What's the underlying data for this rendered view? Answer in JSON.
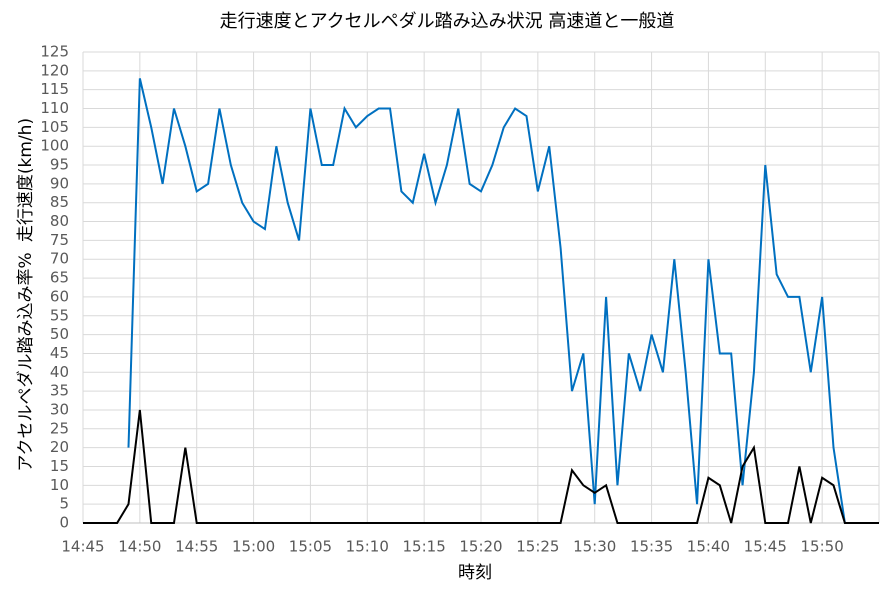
{
  "chart_data": {
    "type": "line",
    "title": "走行速度とアクセルペダル踏み込み状況 高速道と一般道",
    "x_label": "時刻",
    "y_label": [
      "アクセルペダル踏み込み率%",
      "走行速度(km/h)"
    ],
    "x": [
      "14:45",
      "14:46",
      "14:47",
      "14:48",
      "14:49",
      "14:50",
      "14:51",
      "14:52",
      "14:53",
      "14:54",
      "14:55",
      "14:56",
      "14:57",
      "14:58",
      "14:59",
      "15:00",
      "15:01",
      "15:02",
      "15:03",
      "15:04",
      "15:05",
      "15:06",
      "15:07",
      "15:08",
      "15:09",
      "15:10",
      "15:11",
      "15:12",
      "15:13",
      "15:14",
      "15:15",
      "15:16",
      "15:17",
      "15:18",
      "15:19",
      "15:20",
      "15:21",
      "15:22",
      "15:23",
      "15:24",
      "15:25",
      "15:26",
      "15:27",
      "15:28",
      "15:29",
      "15:30",
      "15:31",
      "15:32",
      "15:33",
      "15:34",
      "15:35",
      "15:36",
      "15:37",
      "15:38",
      "15:39",
      "15:40",
      "15:41",
      "15:42",
      "15:43",
      "15:44",
      "15:45",
      "15:46",
      "15:47",
      "15:48",
      "15:49",
      "15:50",
      "15:51",
      "15:52",
      "15:53",
      "15:54",
      "15:55"
    ],
    "series": [
      {
        "name": "走行速度",
        "color": "#0070c0",
        "values": [
          null,
          null,
          null,
          null,
          20,
          118,
          105,
          90,
          110,
          100,
          88,
          90,
          110,
          95,
          85,
          80,
          78,
          100,
          85,
          75,
          110,
          95,
          95,
          110,
          105,
          108,
          110,
          110,
          88,
          85,
          98,
          85,
          95,
          110,
          90,
          88,
          95,
          105,
          110,
          108,
          88,
          100,
          73,
          35,
          45,
          5,
          60,
          10,
          45,
          35,
          50,
          40,
          70,
          40,
          5,
          70,
          45,
          45,
          10,
          40,
          95,
          66,
          60,
          60,
          40,
          60,
          20,
          0,
          null,
          null,
          null
        ]
      },
      {
        "name": "アクセルペダル踏み込み率",
        "color": "#000000",
        "values": [
          0,
          0,
          0,
          0,
          5,
          30,
          0,
          0,
          0,
          20,
          0,
          0,
          0,
          0,
          0,
          0,
          0,
          0,
          0,
          0,
          0,
          0,
          0,
          0,
          0,
          0,
          0,
          0,
          0,
          0,
          0,
          0,
          0,
          0,
          0,
          0,
          0,
          0,
          0,
          0,
          0,
          0,
          0,
          14,
          10,
          8,
          10,
          0,
          0,
          0,
          0,
          0,
          0,
          0,
          0,
          12,
          10,
          0,
          15,
          20,
          0,
          0,
          0,
          15,
          0,
          12,
          10,
          0,
          0,
          0,
          0
        ]
      }
    ],
    "xlim": [
      "14:45",
      "15:55"
    ],
    "xticks": [
      "14:45",
      "14:50",
      "14:55",
      "15:00",
      "15:05",
      "15:10",
      "15:15",
      "15:20",
      "15:25",
      "15:30",
      "15:35",
      "15:40",
      "15:45",
      "15:50"
    ],
    "ylim": [
      0,
      125
    ],
    "yticks": [
      0,
      5,
      10,
      15,
      20,
      25,
      30,
      35,
      40,
      45,
      50,
      55,
      60,
      65,
      70,
      75,
      80,
      85,
      90,
      95,
      100,
      105,
      110,
      115,
      120,
      125
    ],
    "grid": true
  }
}
